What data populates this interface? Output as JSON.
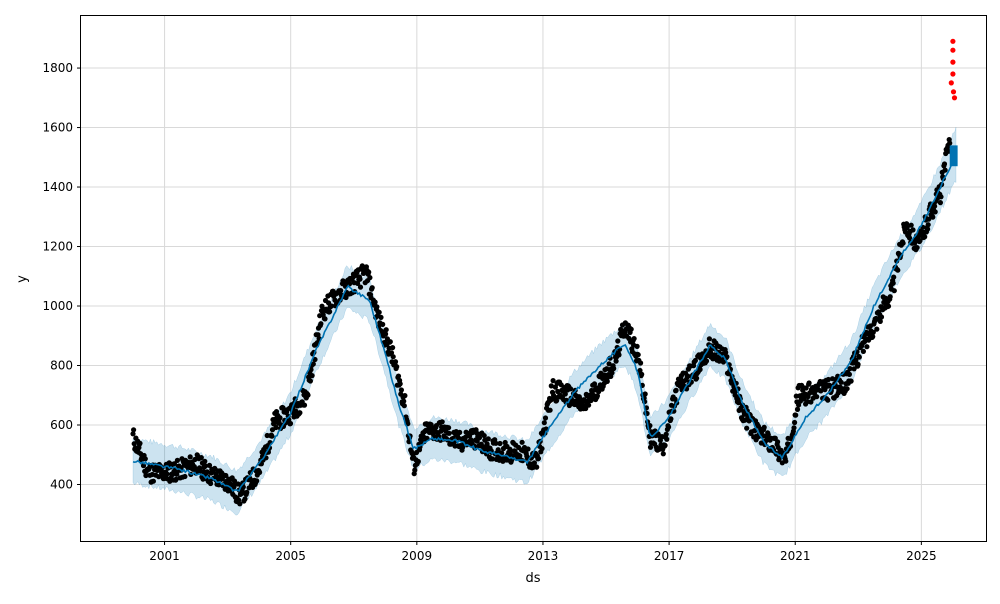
{
  "chart_data": {
    "type": "scatter",
    "xlabel": "ds",
    "ylabel": "y",
    "xlim": [
      1998.35,
      2027.05
    ],
    "ylim": [
      210,
      1975
    ],
    "x_tick_labels": [
      "2001",
      "2005",
      "2009",
      "2013",
      "2017",
      "2021",
      "2025"
    ],
    "x_ticks": [
      2001,
      2005,
      2009,
      2013,
      2017,
      2021,
      2025
    ],
    "y_ticks": [
      400,
      600,
      800,
      1000,
      1200,
      1400,
      1600,
      1800
    ],
    "y_tick_labels": [
      "400",
      "600",
      "800",
      "1000",
      "1200",
      "1400",
      "1600",
      "1800"
    ],
    "grid": true,
    "colors": {
      "observed": "#000000",
      "outliers": "#ff0000",
      "forecast_line": "#0072b2",
      "uncertainty_band": "#0072b2"
    },
    "trend": {
      "x": [
        2000.0,
        2001.5,
        2002.5,
        2003.3,
        2004.0,
        2005.0,
        2005.8,
        2006.8,
        2007.5,
        2008.0,
        2008.4,
        2008.9,
        2009.5,
        2010.3,
        2011.0,
        2011.8,
        2012.5,
        2013.2,
        2014.0,
        2014.8,
        2015.6,
        2016.0,
        2016.4,
        2016.9,
        2017.5,
        2018.3,
        2018.8,
        2019.3,
        2020.0,
        2020.6,
        2021.3,
        2022.0,
        2022.8,
        2023.5,
        2024.3,
        2025.0,
        2025.6,
        2026.1
      ],
      "y": [
        480,
        450,
        420,
        375,
        470,
        640,
        850,
        1065,
        1020,
        840,
        680,
        520,
        555,
        545,
        515,
        495,
        475,
        590,
        710,
        800,
        875,
        780,
        560,
        610,
        720,
        870,
        820,
        680,
        540,
        490,
        620,
        700,
        820,
        1000,
        1160,
        1270,
        1400,
        1510
      ],
      "band_halfwidth": [
        75,
        75,
        75,
        70,
        70,
        70,
        70,
        70,
        70,
        70,
        70,
        70,
        70,
        70,
        70,
        70,
        70,
        70,
        70,
        70,
        70,
        70,
        70,
        70,
        70,
        70,
        70,
        70,
        70,
        70,
        70,
        70,
        70,
        70,
        70,
        75,
        80,
        85
      ]
    },
    "observed": {
      "x": [
        2000.0,
        2000.5,
        2001.0,
        2001.5,
        2002.0,
        2002.5,
        2003.0,
        2003.4,
        2004.0,
        2004.5,
        2005.0,
        2005.5,
        2006.0,
        2006.5,
        2007.0,
        2007.4,
        2007.8,
        2008.2,
        2008.6,
        2008.9,
        2009.3,
        2009.8,
        2010.3,
        2010.8,
        2011.3,
        2011.8,
        2012.3,
        2012.8,
        2013.3,
        2013.8,
        2014.3,
        2014.8,
        2015.3,
        2015.6,
        2016.0,
        2016.4,
        2016.8,
        2017.3,
        2017.8,
        2018.3,
        2018.8,
        2019.3,
        2019.8,
        2020.3,
        2020.7,
        2021.1,
        2021.6,
        2022.1,
        2022.6,
        2023.1,
        2023.6,
        2024.1,
        2024.5,
        2024.9,
        2025.3,
        2025.6,
        2025.9
      ],
      "y": [
        560,
        440,
        440,
        450,
        470,
        430,
        410,
        360,
        450,
        610,
        640,
        700,
        980,
        1040,
        1080,
        1110,
        950,
        840,
        680,
        460,
        580,
        580,
        540,
        560,
        520,
        510,
        510,
        470,
        720,
        700,
        660,
        740,
        820,
        940,
        840,
        560,
        530,
        730,
        780,
        860,
        820,
        650,
        570,
        540,
        480,
        700,
        710,
        720,
        740,
        860,
        960,
        1060,
        1280,
        1200,
        1320,
        1380,
        1560
      ],
      "outliers_x": [
        2026.0,
        2026.0,
        2026.0,
        2026.0,
        2025.95,
        2026.02,
        2026.05
      ],
      "outliers_y": [
        1890,
        1860,
        1820,
        1780,
        1750,
        1720,
        1700
      ]
    }
  }
}
